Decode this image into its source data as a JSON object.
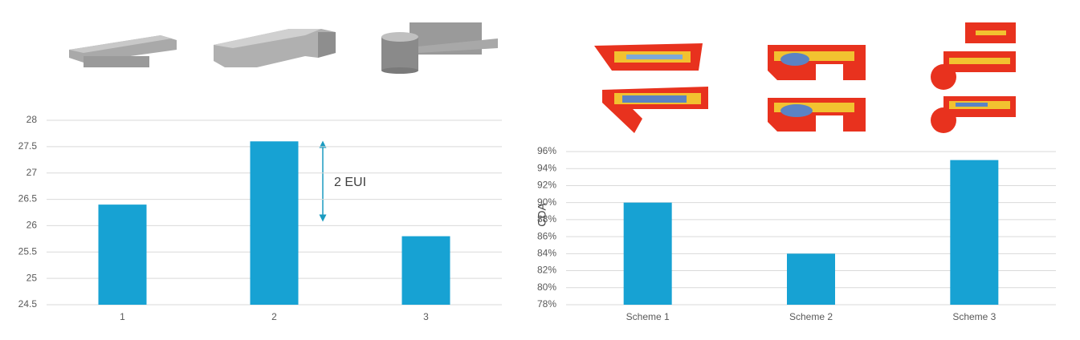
{
  "chart_data": [
    {
      "type": "bar",
      "categories": [
        "1",
        "2",
        "3"
      ],
      "values": [
        26.4,
        27.6,
        25.8
      ],
      "color": "#17a2d3",
      "ylim": [
        24.5,
        28
      ],
      "yticks": [
        24.5,
        25,
        25.5,
        26,
        26.5,
        27,
        27.5,
        28
      ],
      "grid": true,
      "annotation": "2 EUI"
    },
    {
      "type": "bar",
      "categories": [
        "Scheme 1",
        "Scheme 2",
        "Scheme 3"
      ],
      "values": [
        90,
        84,
        95
      ],
      "color": "#17a2d3",
      "ylabel": "CDA",
      "ylim": [
        78,
        96
      ],
      "yticks": [
        {
          "value": 78,
          "label": "78%"
        },
        {
          "value": 80,
          "label": "80%"
        },
        {
          "value": 82,
          "label": "82%"
        },
        {
          "value": 84,
          "label": "84%"
        },
        {
          "value": 86,
          "label": "86%"
        },
        {
          "value": 88,
          "label": "88%"
        },
        {
          "value": 90,
          "label": "90%"
        },
        {
          "value": 92,
          "label": "92%"
        },
        {
          "value": 94,
          "label": "94%"
        },
        {
          "value": 96,
          "label": "96%"
        }
      ],
      "grid": true
    }
  ]
}
